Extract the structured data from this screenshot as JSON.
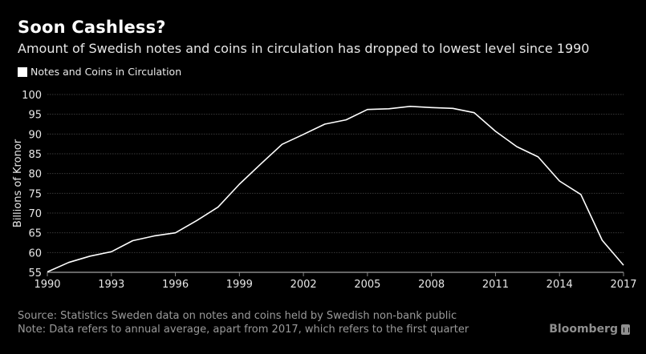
{
  "header": {
    "title": "Soon Cashless?",
    "subtitle": "Amount of Swedish notes and coins in circulation has dropped to lowest level since 1990"
  },
  "footer": {
    "source": "Source: Statistics Sweden data on notes and coins held by Swedish non-bank public",
    "note": "Note: Data refers to annual average, apart from 2017, which refers to the first quarter",
    "brand": "Bloomberg"
  },
  "colors": {
    "background": "#000000",
    "line": "#ffffff",
    "grid": "#3a3a3a",
    "axis": "#888888"
  },
  "chart_data": {
    "type": "line",
    "title": "Soon Cashless?",
    "subtitle": "Amount of Swedish notes and coins in circulation has dropped to lowest level since 1990",
    "xlabel": "",
    "ylabel": "Billions of Kronor",
    "legend": {
      "position": "top-left",
      "entries": [
        "Notes and Coins in Circulation"
      ]
    },
    "grid": true,
    "xlim": [
      1990,
      2017
    ],
    "ylim": [
      55,
      100
    ],
    "xticks": [
      1990,
      1993,
      1996,
      1999,
      2002,
      2005,
      2008,
      2011,
      2014,
      2017
    ],
    "yticks": [
      55,
      60,
      65,
      70,
      75,
      80,
      85,
      90,
      95,
      100
    ],
    "x": [
      1990,
      1991,
      1992,
      1993,
      1994,
      1995,
      1996,
      1997,
      1998,
      1999,
      2000,
      2001,
      2002,
      2003,
      2004,
      2005,
      2006,
      2007,
      2008,
      2009,
      2010,
      2011,
      2012,
      2013,
      2014,
      2015,
      2016,
      2017
    ],
    "series": [
      {
        "name": "Notes and Coins in Circulation",
        "values": [
          55.1,
          57.5,
          59.1,
          60.2,
          63.0,
          64.2,
          65.0,
          68.1,
          71.5,
          77.3,
          82.4,
          87.4,
          89.9,
          92.5,
          93.6,
          96.2,
          96.4,
          97.0,
          96.7,
          96.5,
          95.4,
          90.7,
          86.8,
          84.2,
          78.1,
          74.7,
          63.1,
          56.8
        ]
      }
    ]
  }
}
